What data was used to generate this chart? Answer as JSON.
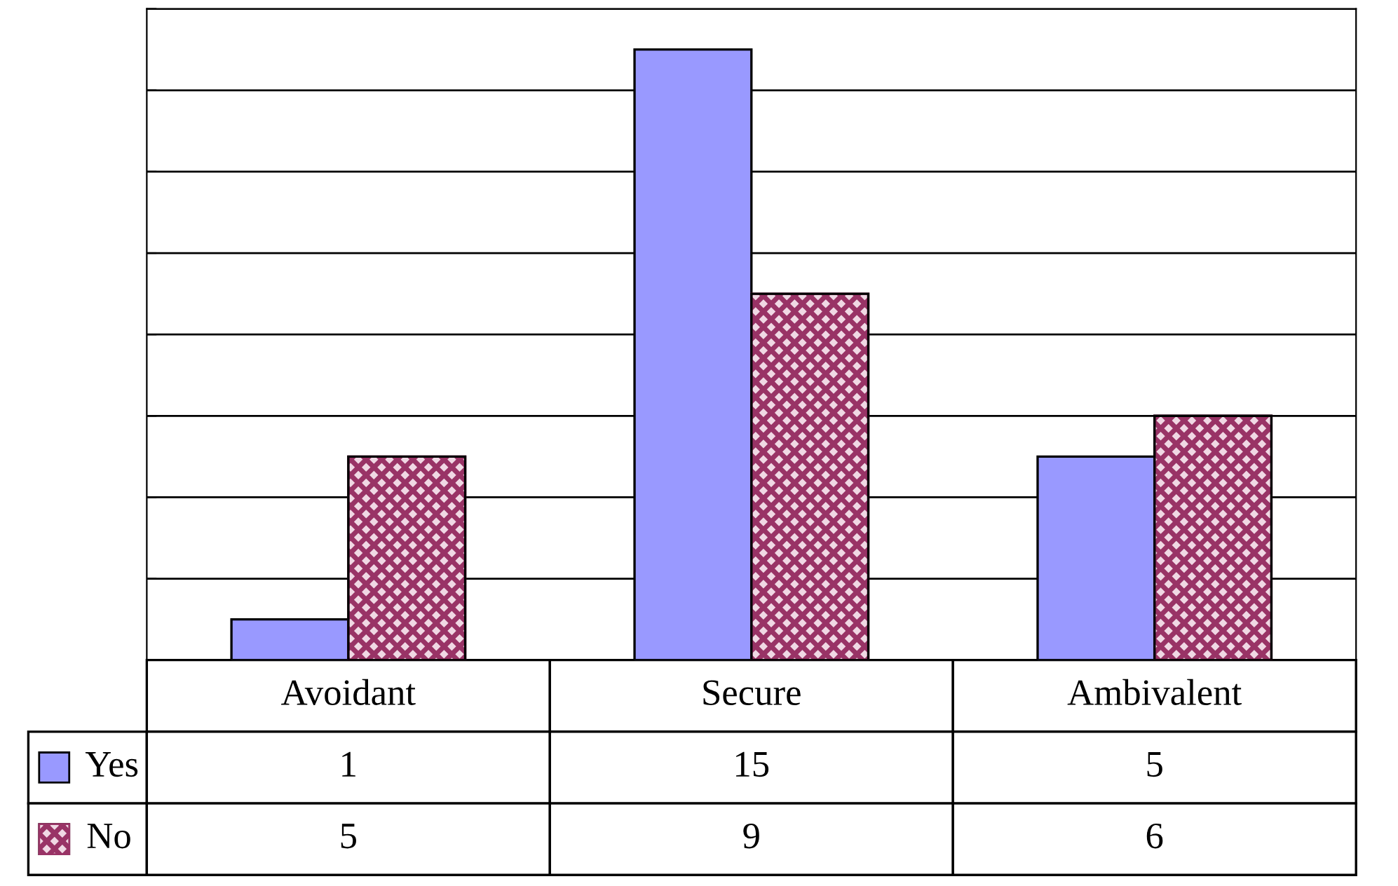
{
  "chart_data": {
    "type": "bar",
    "categories": [
      "Avoidant",
      "Secure",
      "Ambivalent"
    ],
    "series": [
      {
        "name": "Yes",
        "color": "#9999ff",
        "values": [
          1,
          15,
          5
        ]
      },
      {
        "name": "No",
        "color": "#993366",
        "values": [
          5,
          9,
          6
        ]
      }
    ],
    "ylim": [
      0,
      16
    ],
    "yticks": [
      {
        "value": 0,
        "label": null
      },
      {
        "value": 2,
        "label": null
      },
      {
        "value": 4,
        "label": null
      },
      {
        "value": 6,
        "label": null
      },
      {
        "value": 8,
        "label": null
      },
      {
        "value": 10,
        "label": null
      },
      {
        "value": 12,
        "label": null
      },
      {
        "value": 14,
        "label": null
      },
      {
        "value": 16,
        "label": null
      }
    ],
    "grid": "y",
    "legend": "bottom left",
    "data_labels": true
  }
}
